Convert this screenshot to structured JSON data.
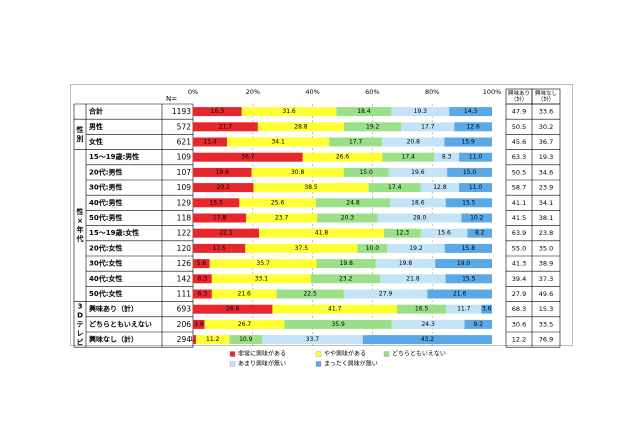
{
  "chart_data": {
    "type": "bar",
    "stacked": "percent",
    "n_label": "N=",
    "xlim": [
      0,
      100
    ],
    "x_ticks": [
      "0%",
      "20%",
      "40%",
      "60%",
      "80%",
      "100%"
    ],
    "grid": true,
    "legend_position": "bottom",
    "extra_headers": [
      "興味あり（計）",
      "興味なし（計）"
    ],
    "groups": [
      {
        "label": "",
        "start": 0,
        "end": 0
      },
      {
        "label": "性別",
        "start": 1,
        "end": 2
      },
      {
        "label": "性×年代",
        "start": 3,
        "end": 12
      },
      {
        "label": "3Dテレビ",
        "start": 13,
        "end": 15
      }
    ],
    "series": [
      {
        "name": "非常に興味がある",
        "color": "#e8272c"
      },
      {
        "name": "やや興味がある",
        "color": "#ffff33"
      },
      {
        "name": "どちらともいえない",
        "color": "#99e089"
      },
      {
        "name": "あまり興味が無い",
        "color": "#c5e3f6"
      },
      {
        "name": "まったく興味が無い",
        "color": "#5aa9e6"
      }
    ],
    "rows": [
      {
        "label": "合計",
        "n": "1193",
        "values": [
          "16.3",
          "31.6",
          "18.4",
          "19.3",
          "14.3"
        ],
        "interest": "47.9",
        "no_interest": "33.6"
      },
      {
        "label": "男性",
        "n": "572",
        "values": [
          "21.7",
          "28.8",
          "19.2",
          "17.7",
          "12.6"
        ],
        "interest": "50.5",
        "no_interest": "30.2"
      },
      {
        "label": "女性",
        "n": "621",
        "values": [
          "11.4",
          "34.1",
          "17.7",
          "20.8",
          "15.9"
        ],
        "interest": "45.6",
        "no_interest": "36.7"
      },
      {
        "label": "15～19歳:男性",
        "n": "109",
        "values": [
          "36.7",
          "26.6",
          "17.4",
          "8.3",
          "11.0"
        ],
        "interest": "63.3",
        "no_interest": "19.3"
      },
      {
        "label": "20代:男性",
        "n": "107",
        "values": [
          "19.6",
          "30.8",
          "15.0",
          "19.6",
          "15.0"
        ],
        "interest": "50.5",
        "no_interest": "34.6"
      },
      {
        "label": "30代:男性",
        "n": "109",
        "values": [
          "20.2",
          "38.5",
          "17.4",
          "12.8",
          "11.0"
        ],
        "interest": "58.7",
        "no_interest": "23.9"
      },
      {
        "label": "40代:男性",
        "n": "129",
        "values": [
          "15.5",
          "25.6",
          "24.8",
          "18.6",
          "15.5"
        ],
        "interest": "41.1",
        "no_interest": "34.1"
      },
      {
        "label": "50代:男性",
        "n": "118",
        "values": [
          "17.8",
          "23.7",
          "20.3",
          "28.0",
          "10.2"
        ],
        "interest": "41.5",
        "no_interest": "38.1"
      },
      {
        "label": "15～19歳:女性",
        "n": "122",
        "values": [
          "22.1",
          "41.8",
          "12.3",
          "15.6",
          "8.2"
        ],
        "interest": "63.9",
        "no_interest": "23.8"
      },
      {
        "label": "20代:女性",
        "n": "120",
        "values": [
          "17.5",
          "37.5",
          "10.0",
          "19.2",
          "15.8"
        ],
        "interest": "55.0",
        "no_interest": "35.0"
      },
      {
        "label": "30代:女性",
        "n": "126",
        "values": [
          "5.6",
          "35.7",
          "19.8",
          "19.8",
          "19.0"
        ],
        "interest": "41.3",
        "no_interest": "38.9"
      },
      {
        "label": "40代:女性",
        "n": "142",
        "values": [
          "6.3",
          "33.1",
          "23.2",
          "21.8",
          "15.5"
        ],
        "interest": "39.4",
        "no_interest": "37.3"
      },
      {
        "label": "50代:女性",
        "n": "111",
        "values": [
          "6.3",
          "21.6",
          "22.5",
          "27.9",
          "21.6"
        ],
        "interest": "27.9",
        "no_interest": "49.6"
      },
      {
        "label": "興味あり（計）",
        "n": "693",
        "values": [
          "26.6",
          "41.7",
          "16.5",
          "11.7",
          "3.6"
        ],
        "interest": "68.3",
        "no_interest": "15.3"
      },
      {
        "label": "どちらともいえない",
        "n": "206",
        "values": [
          "3.9",
          "26.7",
          "35.9",
          "24.3",
          "9.2"
        ],
        "interest": "30.6",
        "no_interest": "33.5"
      },
      {
        "label": "興味なし（計）",
        "n": "294",
        "values": [
          "1.0",
          "11.2",
          "10.9",
          "33.7",
          "43.2"
        ],
        "interest": "12.2",
        "no_interest": "76.9"
      }
    ]
  }
}
